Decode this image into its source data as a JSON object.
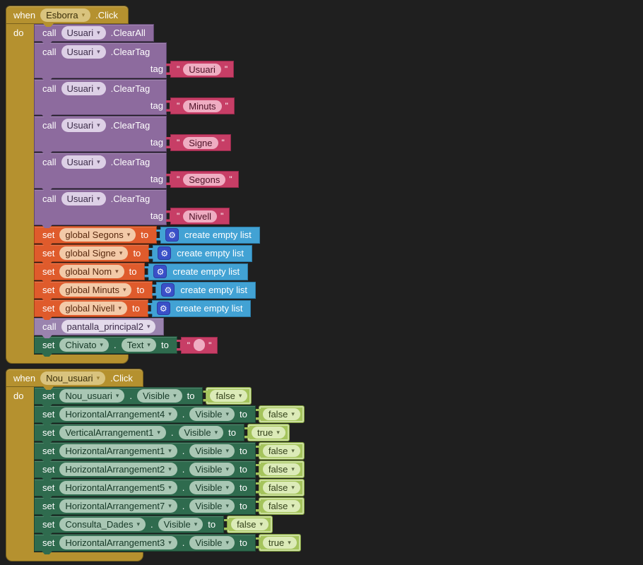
{
  "workspace": {
    "background": "#1f1f1f"
  },
  "labels": {
    "when": "when",
    "do": "do",
    "call": "call",
    "set": "set",
    "to": "to",
    "dot": ".",
    "quote": "\""
  },
  "icons": {
    "dropdown_arrow": "▾",
    "gear": "⚙"
  },
  "colors": {
    "event_gold": "#b5912f",
    "component_method_purple": "#8d6b9e",
    "procedure_purple": "#9a83ae",
    "text_pink": "#c73e66",
    "variable_orange": "#df5b2c",
    "list_blue": "#42a2d4",
    "property_green": "#2f6b4e",
    "logic_light_green": "#a5c45c"
  },
  "blocks": [
    {
      "kind": "event",
      "event_component": "Esborra",
      "event_suffix": ".Click",
      "statements": [
        {
          "kind": "call_method",
          "component": "Usuari",
          "method": ".ClearAll"
        },
        {
          "kind": "call_method_arg",
          "component": "Usuari",
          "method": ".ClearTag",
          "arg_label": "tag",
          "arg_kind": "text",
          "arg_value": "Usuari"
        },
        {
          "kind": "call_method_arg",
          "component": "Usuari",
          "method": ".ClearTag",
          "arg_label": "tag",
          "arg_kind": "text",
          "arg_value": "Minuts"
        },
        {
          "kind": "call_method_arg",
          "component": "Usuari",
          "method": ".ClearTag",
          "arg_label": "tag",
          "arg_kind": "text",
          "arg_value": "Signe"
        },
        {
          "kind": "call_method_arg",
          "component": "Usuari",
          "method": ".ClearTag",
          "arg_label": "tag",
          "arg_kind": "text",
          "arg_value": "Segons"
        },
        {
          "kind": "call_method_arg",
          "component": "Usuari",
          "method": ".ClearTag",
          "arg_label": "tag",
          "arg_kind": "text",
          "arg_value": "Nivell"
        },
        {
          "kind": "set_global",
          "variable": "global Segons",
          "value": "create empty list"
        },
        {
          "kind": "set_global",
          "variable": "global Signe",
          "value": "create empty list"
        },
        {
          "kind": "set_global",
          "variable": "global Nom",
          "value": "create empty list"
        },
        {
          "kind": "set_global",
          "variable": "global Minuts",
          "value": "create empty list"
        },
        {
          "kind": "set_global",
          "variable": "global Nivell",
          "value": "create empty list"
        },
        {
          "kind": "call_proc",
          "name": "pantalla_principal2"
        },
        {
          "kind": "set_prop",
          "component": "Chivato",
          "property": "Text",
          "value_kind": "text",
          "value": ""
        }
      ]
    },
    {
      "kind": "event",
      "event_component": "Nou_usuari",
      "event_suffix": ".Click",
      "statements": [
        {
          "kind": "set_prop",
          "component": "Nou_usuari",
          "property": "Visible",
          "value_kind": "logic",
          "value": "false"
        },
        {
          "kind": "set_prop",
          "component": "HorizontalArrangement4",
          "property": "Visible",
          "value_kind": "logic",
          "value": "false"
        },
        {
          "kind": "set_prop",
          "component": "VerticalArrangement1",
          "property": "Visible",
          "value_kind": "logic",
          "value": "true"
        },
        {
          "kind": "set_prop",
          "component": "HorizontalArrangement1",
          "property": "Visible",
          "value_kind": "logic",
          "value": "false"
        },
        {
          "kind": "set_prop",
          "component": "HorizontalArrangement2",
          "property": "Visible",
          "value_kind": "logic",
          "value": "false"
        },
        {
          "kind": "set_prop",
          "component": "HorizontalArrangement5",
          "property": "Visible",
          "value_kind": "logic",
          "value": "false"
        },
        {
          "kind": "set_prop",
          "component": "HorizontalArrangement7",
          "property": "Visible",
          "value_kind": "logic",
          "value": "false"
        },
        {
          "kind": "set_prop",
          "component": "Consulta_Dades",
          "property": "Visible",
          "value_kind": "logic",
          "value": "false"
        },
        {
          "kind": "set_prop",
          "component": "HorizontalArrangement3",
          "property": "Visible",
          "value_kind": "logic",
          "value": "true"
        }
      ]
    }
  ]
}
